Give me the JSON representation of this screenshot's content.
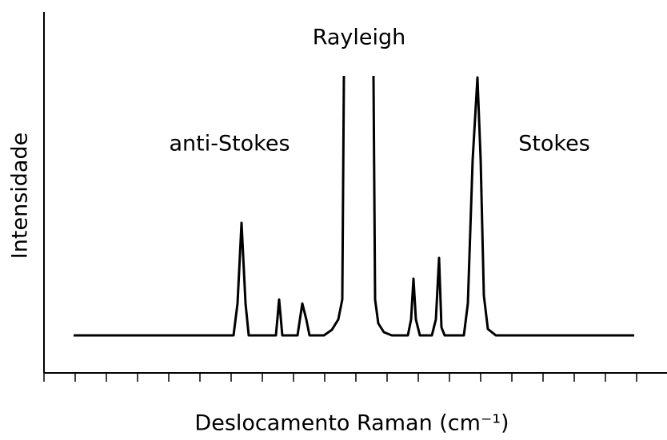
{
  "chart_data": {
    "type": "line",
    "x_label": "Deslocamento Raman (cm⁻¹)",
    "y_label": "Intensidade",
    "annotations": [
      "Rayleigh",
      "anti-Stokes",
      "Stokes"
    ],
    "xlim": [
      0,
      779
    ],
    "ylim": [
      0,
      452
    ],
    "color": "#000000",
    "series": [
      {
        "x": [
          37,
          237,
          242,
          247,
          252,
          256,
          290,
          294,
          298,
          317,
          323,
          328,
          332,
          350,
          360,
          368,
          373,
          375,
          393,
          412,
          414,
          418,
          425,
          435,
          455,
          459,
          462,
          465,
          470,
          485,
          490,
          494,
          497,
          501,
          510,
          525,
          530,
          536,
          542,
          546,
          550,
          555,
          565,
          738
        ],
        "values": [
          47,
          47,
          87,
          188,
          87,
          47,
          47,
          92,
          47,
          47,
          87,
          67,
          47,
          47,
          54,
          67,
          92,
          372,
          null,
          372,
          92,
          62,
          51,
          47,
          47,
          67,
          118,
          67,
          47,
          47,
          67,
          144,
          57,
          47,
          47,
          47,
          87,
          267,
          370,
          267,
          97,
          55,
          47,
          47
        ]
      }
    ]
  }
}
